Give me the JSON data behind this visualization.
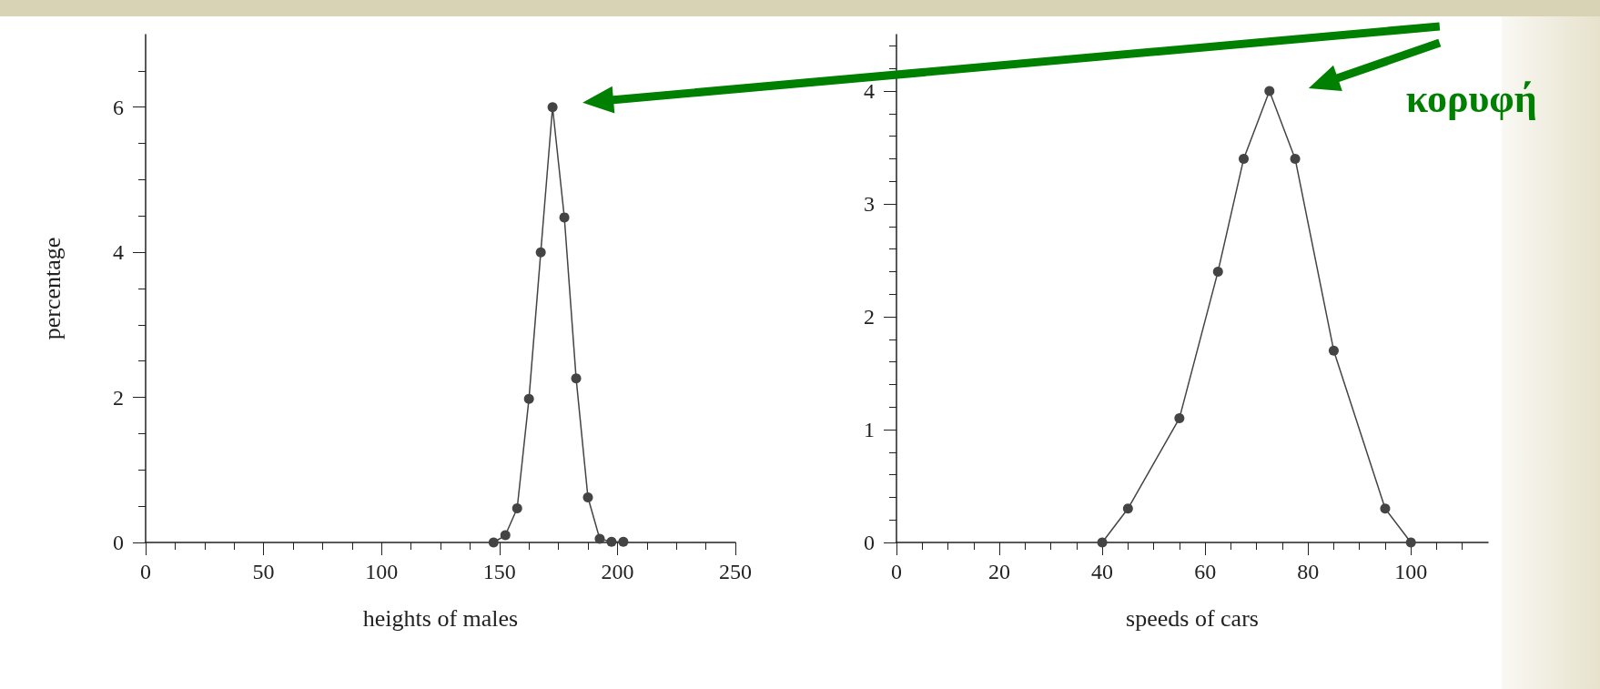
{
  "chart_data": [
    {
      "type": "line",
      "xlabel": "heights of males",
      "ylabel": "percentage",
      "x": [
        147.5,
        152.5,
        157.5,
        162.5,
        167.5,
        172.5,
        177.5,
        182.5,
        187.5,
        192.5,
        197.5,
        202.5
      ],
      "series": [
        {
          "color": "#444444",
          "values": [
            0,
            0.1,
            0.47,
            1.98,
            4,
            6,
            4.48,
            2.26,
            0.62,
            0.05,
            0.01,
            0.01
          ]
        }
      ],
      "marker": "circle",
      "line_style": "solid",
      "grid": false,
      "xlim": [
        0,
        250
      ],
      "xticks": [
        0,
        50,
        100,
        150,
        200,
        250
      ],
      "ylim": [
        0,
        7
      ],
      "yticks": [
        0,
        2,
        4,
        6
      ]
    },
    {
      "type": "line",
      "xlabel": "speeds of cars",
      "x": [
        40,
        45,
        55,
        62.5,
        67.5,
        72.5,
        77.5,
        85,
        95,
        100
      ],
      "series": [
        {
          "color": "#444444",
          "values": [
            0,
            0.3,
            1.1,
            2.4,
            3.4,
            4,
            3.4,
            1.7,
            0.3,
            0
          ]
        }
      ],
      "marker": "circle",
      "line_style": "solid",
      "grid": false,
      "xlim": [
        0,
        115
      ],
      "xticks": [
        0,
        20,
        40,
        60,
        80,
        100
      ],
      "ylim": [
        0,
        4.5
      ],
      "yticks": [
        0,
        1,
        2,
        3,
        4
      ],
      "annotations": [
        "κορυφή"
      ]
    }
  ]
}
